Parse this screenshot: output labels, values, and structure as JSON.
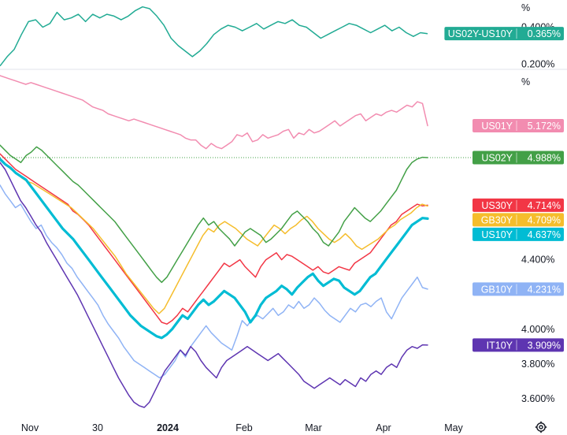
{
  "chart_data": [
    {
      "type": "line",
      "pane": "spread",
      "unit_label": "%",
      "yticks": [
        {
          "value": 0.2,
          "label": "0.200%"
        },
        {
          "value": 0.4,
          "label": "0.400%"
        }
      ],
      "ylim": [
        0.18,
        0.53
      ],
      "grid": false,
      "legend": "right-edge value tags",
      "series": [
        {
          "name": "US02Y-US10Y",
          "value_label": "0.365%",
          "color": "#22ab94",
          "values": [
            0.19,
            0.24,
            0.28,
            0.36,
            0.43,
            0.44,
            0.4,
            0.42,
            0.48,
            0.44,
            0.45,
            0.47,
            0.43,
            0.47,
            0.45,
            0.47,
            0.46,
            0.44,
            0.46,
            0.49,
            0.51,
            0.5,
            0.46,
            0.41,
            0.34,
            0.3,
            0.27,
            0.24,
            0.27,
            0.31,
            0.36,
            0.39,
            0.41,
            0.4,
            0.38,
            0.4,
            0.42,
            0.39,
            0.41,
            0.43,
            0.42,
            0.44,
            0.41,
            0.4,
            0.37,
            0.34,
            0.36,
            0.38,
            0.4,
            0.42,
            0.41,
            0.39,
            0.37,
            0.39,
            0.41,
            0.38,
            0.4,
            0.37,
            0.35,
            0.37,
            0.365
          ]
        }
      ]
    },
    {
      "type": "line",
      "pane": "yields",
      "unit_label": "%",
      "x_ticks": [
        {
          "label": "Nov",
          "bold": false
        },
        {
          "label": "30",
          "bold": false
        },
        {
          "label": "2024",
          "bold": true
        },
        {
          "label": "Feb",
          "bold": false
        },
        {
          "label": "Mar",
          "bold": false
        },
        {
          "label": "Apr",
          "bold": false
        },
        {
          "label": "May",
          "bold": false
        }
      ],
      "yticks": [
        {
          "value": 3.6,
          "label": "3.600%"
        },
        {
          "value": 3.8,
          "label": "3.800%"
        },
        {
          "value": 4.0,
          "label": "4.000%"
        },
        {
          "value": 4.4,
          "label": "4.400%"
        }
      ],
      "ylim": [
        3.5,
        5.46
      ],
      "grid": false,
      "legend": "right-edge value tags",
      "series": [
        {
          "name": "US01Y",
          "value_label": "5.172%",
          "color": "#f28cb0",
          "width": 1.5,
          "values": [
            5.46,
            5.45,
            5.44,
            5.43,
            5.42,
            5.41,
            5.42,
            5.41,
            5.4,
            5.39,
            5.38,
            5.37,
            5.36,
            5.35,
            5.34,
            5.33,
            5.32,
            5.3,
            5.28,
            5.27,
            5.26,
            5.24,
            5.23,
            5.22,
            5.21,
            5.2,
            5.21,
            5.2,
            5.19,
            5.18,
            5.17,
            5.16,
            5.15,
            5.14,
            5.13,
            5.12,
            5.1,
            5.09,
            5.09,
            5.06,
            5.04,
            5.07,
            5.05,
            5.04,
            5.06,
            5.08,
            5.12,
            5.11,
            5.13,
            5.08,
            5.09,
            5.12,
            5.1,
            5.11,
            5.12,
            5.14,
            5.15,
            5.1,
            5.13,
            5.12,
            5.15,
            5.13,
            5.14,
            5.16,
            5.18,
            5.2,
            5.17,
            5.19,
            5.21,
            5.23,
            5.24,
            5.2,
            5.22,
            5.24,
            5.23,
            5.25,
            5.26,
            5.25,
            5.27,
            5.29,
            5.28,
            5.31,
            5.3,
            5.172
          ]
        },
        {
          "name": "GB10Y",
          "value_label": "4.231%",
          "color": "#8fb3f5",
          "width": 1.5,
          "values": [
            4.83,
            4.78,
            4.74,
            4.7,
            4.72,
            4.67,
            4.62,
            4.58,
            4.6,
            4.54,
            4.5,
            4.47,
            4.43,
            4.38,
            4.35,
            4.3,
            4.26,
            4.22,
            4.18,
            4.14,
            4.08,
            4.03,
            3.99,
            3.95,
            3.9,
            3.86,
            3.82,
            3.8,
            3.78,
            3.76,
            3.74,
            3.72,
            3.74,
            3.78,
            3.82,
            3.88,
            3.84,
            3.9,
            3.94,
            3.98,
            4.02,
            3.98,
            3.95,
            3.92,
            3.9,
            3.88,
            3.96,
            4.05,
            4.02,
            4.06,
            4.08,
            4.06,
            4.09,
            4.12,
            4.08,
            4.1,
            4.14,
            4.12,
            4.16,
            4.12,
            4.14,
            4.18,
            4.15,
            4.11,
            4.08,
            4.06,
            4.04,
            4.08,
            4.12,
            4.1,
            4.14,
            4.15,
            4.13,
            4.16,
            4.18,
            4.1,
            4.06,
            4.12,
            4.18,
            4.22,
            4.26,
            4.3,
            4.24,
            4.231
          ]
        },
        {
          "name": "IT10Y",
          "value_label": "3.909%",
          "color": "#5e35b1",
          "width": 1.5,
          "values": [
            4.96,
            4.92,
            4.86,
            4.8,
            4.74,
            4.7,
            4.65,
            4.6,
            4.56,
            4.5,
            4.45,
            4.4,
            4.35,
            4.3,
            4.25,
            4.2,
            4.14,
            4.08,
            4.02,
            3.96,
            3.9,
            3.84,
            3.78,
            3.72,
            3.67,
            3.62,
            3.58,
            3.56,
            3.55,
            3.58,
            3.64,
            3.7,
            3.76,
            3.8,
            3.84,
            3.88,
            3.85,
            3.9,
            3.87,
            3.82,
            3.78,
            3.75,
            3.72,
            3.78,
            3.82,
            3.84,
            3.86,
            3.88,
            3.9,
            3.88,
            3.86,
            3.84,
            3.82,
            3.84,
            3.86,
            3.83,
            3.8,
            3.77,
            3.74,
            3.7,
            3.68,
            3.66,
            3.68,
            3.7,
            3.72,
            3.7,
            3.68,
            3.71,
            3.69,
            3.67,
            3.72,
            3.7,
            3.74,
            3.76,
            3.74,
            3.78,
            3.8,
            3.78,
            3.84,
            3.88,
            3.9,
            3.89,
            3.91,
            3.909
          ]
        },
        {
          "name": "US30Y",
          "value_label": "4.714%",
          "color": "#f23645",
          "width": 1.5,
          "values": [
            5.01,
            4.98,
            4.95,
            4.92,
            4.9,
            4.88,
            4.86,
            4.84,
            4.82,
            4.8,
            4.78,
            4.76,
            4.74,
            4.72,
            4.68,
            4.66,
            4.63,
            4.6,
            4.56,
            4.52,
            4.48,
            4.44,
            4.4,
            4.36,
            4.32,
            4.28,
            4.24,
            4.2,
            4.16,
            4.12,
            4.08,
            4.04,
            4.03,
            4.05,
            4.08,
            4.12,
            4.1,
            4.14,
            4.18,
            4.22,
            4.26,
            4.3,
            4.34,
            4.38,
            4.36,
            4.38,
            4.4,
            4.36,
            4.33,
            4.3,
            4.36,
            4.4,
            4.42,
            4.44,
            4.4,
            4.43,
            4.42,
            4.4,
            4.38,
            4.36,
            4.34,
            4.36,
            4.33,
            4.32,
            4.34,
            4.36,
            4.35,
            4.34,
            4.38,
            4.4,
            4.42,
            4.44,
            4.48,
            4.52,
            4.56,
            4.6,
            4.62,
            4.66,
            4.68,
            4.7,
            4.72,
            4.71,
            4.714
          ]
        },
        {
          "name": "GB30Y",
          "value_label": "4.709%",
          "color": "#f5bd2c",
          "width": 1.5,
          "values": [
            4.98,
            4.95,
            4.92,
            4.9,
            4.87,
            4.85,
            4.84,
            4.82,
            4.8,
            4.78,
            4.76,
            4.74,
            4.72,
            4.7,
            4.67,
            4.64,
            4.61,
            4.58,
            4.54,
            4.5,
            4.46,
            4.42,
            4.37,
            4.32,
            4.28,
            4.24,
            4.2,
            4.16,
            4.12,
            4.09,
            4.12,
            4.18,
            4.24,
            4.3,
            4.36,
            4.42,
            4.48,
            4.54,
            4.58,
            4.56,
            4.6,
            4.62,
            4.6,
            4.58,
            4.55,
            4.52,
            4.5,
            4.48,
            4.52,
            4.56,
            4.6,
            4.58,
            4.55,
            4.58,
            4.6,
            4.63,
            4.65,
            4.62,
            4.58,
            4.55,
            4.52,
            4.5,
            4.52,
            4.55,
            4.52,
            4.48,
            4.46,
            4.48,
            4.5,
            4.52,
            4.55,
            4.58,
            4.6,
            4.63,
            4.65,
            4.67,
            4.7,
            4.72,
            4.709
          ]
        },
        {
          "name": "US02Y",
          "value_label": "4.988%",
          "color": "#43a047",
          "width": 1.5,
          "values": [
            5.06,
            5.03,
            5.0,
            4.98,
            4.96,
            5.0,
            5.02,
            5.05,
            5.03,
            5.0,
            4.97,
            4.94,
            4.91,
            4.88,
            4.85,
            4.83,
            4.8,
            4.77,
            4.74,
            4.71,
            4.68,
            4.65,
            4.62,
            4.58,
            4.54,
            4.5,
            4.46,
            4.42,
            4.38,
            4.34,
            4.3,
            4.27,
            4.3,
            4.35,
            4.4,
            4.45,
            4.5,
            4.55,
            4.6,
            4.64,
            4.6,
            4.62,
            4.58,
            4.55,
            4.52,
            4.48,
            4.52,
            4.56,
            4.58,
            4.56,
            4.54,
            4.5,
            4.52,
            4.55,
            4.58,
            4.62,
            4.66,
            4.68,
            4.65,
            4.62,
            4.58,
            4.55,
            4.5,
            4.48,
            4.52,
            4.56,
            4.62,
            4.66,
            4.7,
            4.67,
            4.64,
            4.62,
            4.65,
            4.68,
            4.72,
            4.76,
            4.8,
            4.86,
            4.92,
            4.96,
            4.98,
            4.99,
            4.988
          ]
        },
        {
          "name": "US10Y",
          "value_label": "4.637%",
          "color": "#00bcd4",
          "width": 3.2,
          "values": [
            4.98,
            4.95,
            4.93,
            4.9,
            4.88,
            4.86,
            4.82,
            4.78,
            4.74,
            4.7,
            4.66,
            4.62,
            4.58,
            4.55,
            4.52,
            4.48,
            4.44,
            4.4,
            4.36,
            4.32,
            4.28,
            4.24,
            4.2,
            4.16,
            4.12,
            4.08,
            4.05,
            4.02,
            4.0,
            3.98,
            3.96,
            3.95,
            3.97,
            4.0,
            4.04,
            4.08,
            4.06,
            4.1,
            4.14,
            4.17,
            4.14,
            4.16,
            4.19,
            4.22,
            4.2,
            4.18,
            4.14,
            4.1,
            4.04,
            4.08,
            4.14,
            4.18,
            4.2,
            4.22,
            4.25,
            4.23,
            4.2,
            4.24,
            4.27,
            4.3,
            4.32,
            4.28,
            4.25,
            4.27,
            4.29,
            4.28,
            4.24,
            4.22,
            4.2,
            4.22,
            4.26,
            4.3,
            4.32,
            4.36,
            4.4,
            4.44,
            4.48,
            4.52,
            4.56,
            4.6,
            4.62,
            4.64,
            4.637
          ]
        }
      ]
    }
  ]
}
